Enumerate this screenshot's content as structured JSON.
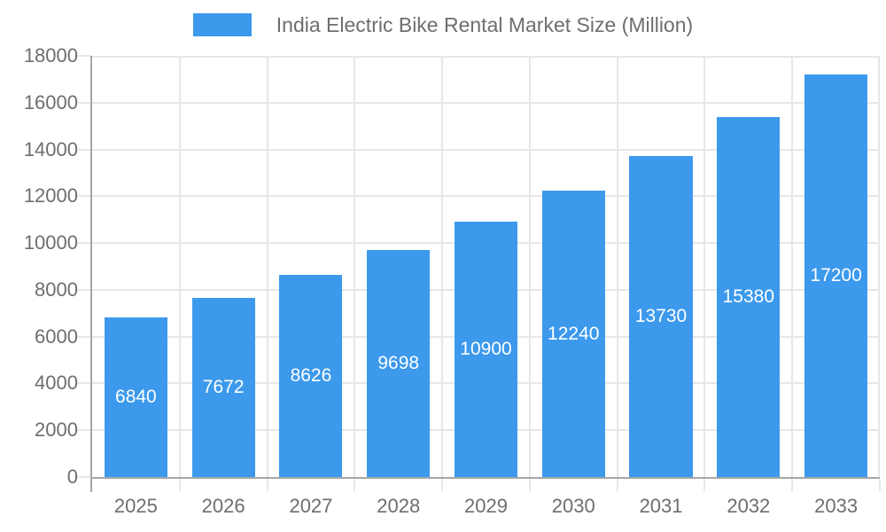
{
  "legend": {
    "label": "India Electric Bike Rental Market Size (Million)"
  },
  "colors": {
    "background": "#ffffff",
    "bar": "#3c99ec",
    "bar_label": "#ffffff",
    "grid": "#e7e7e7",
    "axis_line": "#a6a6a6",
    "axis_text": "#6e6e6e"
  },
  "chart_data": {
    "type": "bar",
    "title": "India Electric Bike Rental Market Size (Million)",
    "categories": [
      "2025",
      "2026",
      "2027",
      "2028",
      "2029",
      "2030",
      "2031",
      "2032",
      "2033"
    ],
    "values": [
      6840,
      7672,
      8626,
      9698,
      10900,
      12240,
      13730,
      15380,
      17200
    ],
    "xlabel": "",
    "ylabel": "",
    "ylim": [
      0,
      18000
    ],
    "yticks": [
      0,
      2000,
      4000,
      6000,
      8000,
      10000,
      12000,
      14000,
      16000,
      18000
    ],
    "grid": true,
    "legend_position": "top-center",
    "bar_label_position": "center",
    "bar_width_fraction": 0.72
  }
}
